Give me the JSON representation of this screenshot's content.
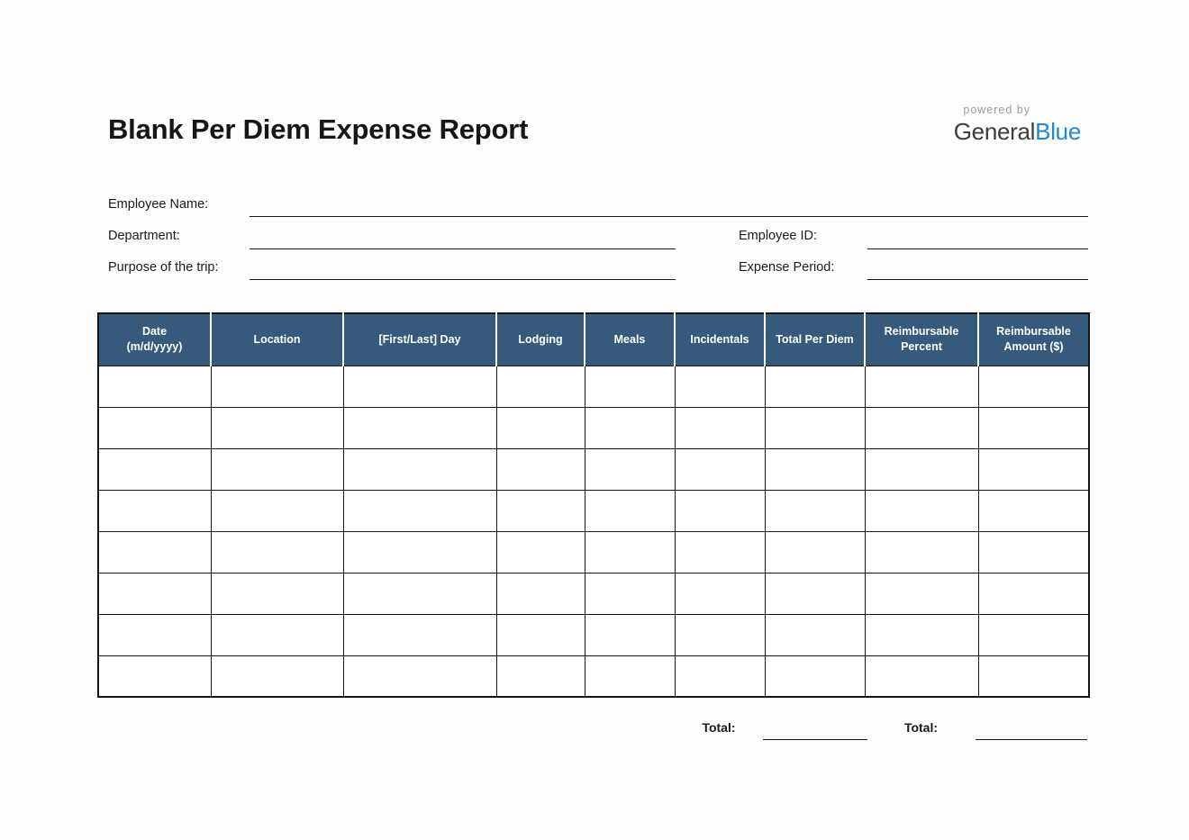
{
  "page": {
    "title": "Blank Per Diem Expense Report"
  },
  "logo": {
    "powered_by": "powered by",
    "general": "General",
    "blue": "Blue",
    "general_color": "#3d3d3c",
    "blue_color": "#2288d1"
  },
  "form": {
    "employee_name": {
      "label": "Employee Name:",
      "value": ""
    },
    "department": {
      "label": "Department:",
      "value": ""
    },
    "purpose": {
      "label": "Purpose of the trip:",
      "value": ""
    },
    "employee_id": {
      "label": "Employee ID:",
      "value": ""
    },
    "expense_period": {
      "label": "Expense Period:",
      "value": ""
    }
  },
  "table": {
    "header_bg": "#355a7c",
    "header_text_color": "#ffffff",
    "row_count": 8,
    "columns": [
      {
        "label": "Date\n(m/d/yyyy)"
      },
      {
        "label": "Location"
      },
      {
        "label": "[First/Last] Day"
      },
      {
        "label": "Lodging"
      },
      {
        "label": "Meals"
      },
      {
        "label": "Incidentals"
      },
      {
        "label": "Total Per Diem"
      },
      {
        "label": "Reimbursable Percent"
      },
      {
        "label": "Reimbursable Amount ($)"
      }
    ]
  },
  "totals": {
    "per_diem": {
      "label": "Total:",
      "value": ""
    },
    "reimbursable": {
      "label": "Total:",
      "value": ""
    }
  }
}
